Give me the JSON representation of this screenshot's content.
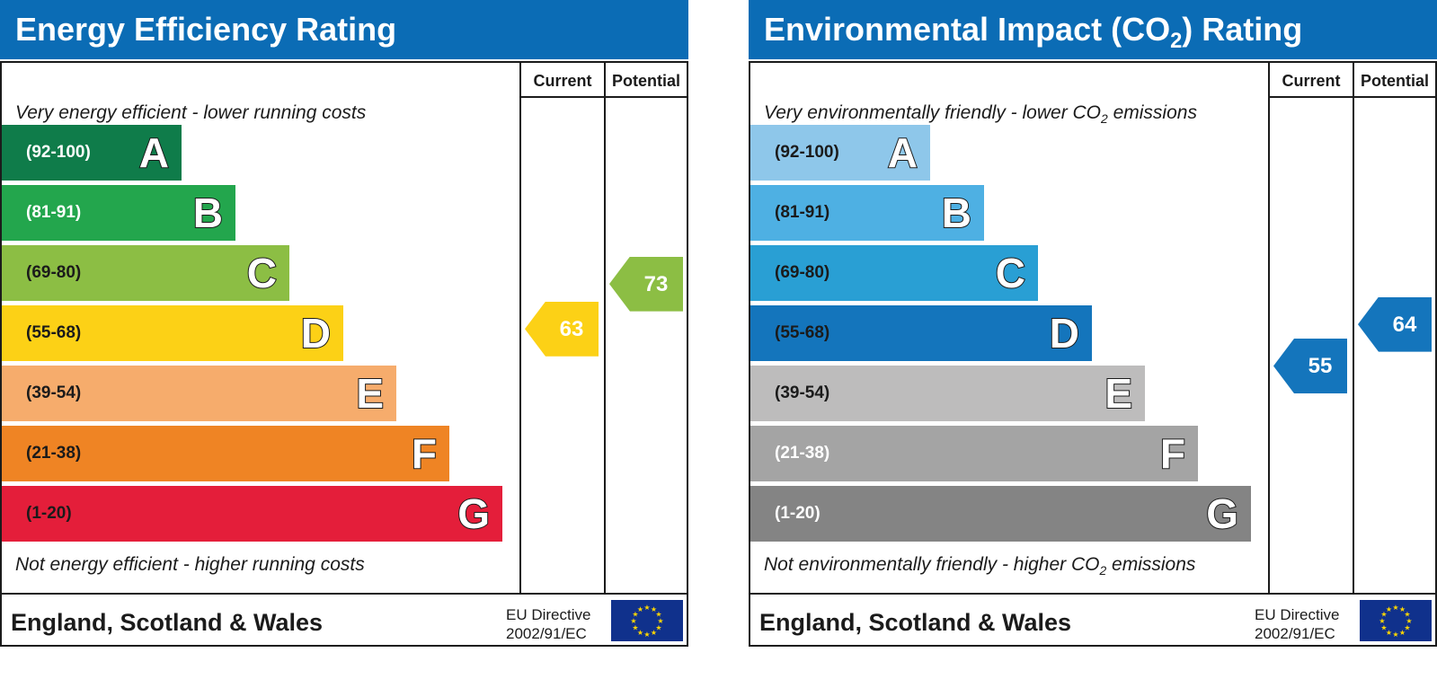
{
  "colors": {
    "header_blue": "#0b6cb5",
    "border": "#1b1b1b",
    "eu_flag": "#10318c",
    "eu_star": "#ffd700"
  },
  "chart_data": [
    {
      "type": "bar",
      "title": "Energy Efficiency Rating",
      "columns": [
        "Current",
        "Potential"
      ],
      "top_note": "Very energy efficient - lower running costs",
      "bottom_note": "Not energy efficient - higher running costs",
      "bands": [
        {
          "range": "(92-100)",
          "letter": "A",
          "color": "#0f7c4a",
          "text_color": "#ffffff"
        },
        {
          "range": "(81-91)",
          "letter": "B",
          "color": "#23a64d",
          "text_color": "#ffffff"
        },
        {
          "range": "(69-80)",
          "letter": "C",
          "color": "#8cbe44",
          "text_color": "#1b1b1b"
        },
        {
          "range": "(55-68)",
          "letter": "D",
          "color": "#fcd116",
          "text_color": "#1b1b1b"
        },
        {
          "range": "(39-54)",
          "letter": "E",
          "color": "#f6ac6c",
          "text_color": "#1b1b1b"
        },
        {
          "range": "(21-38)",
          "letter": "F",
          "color": "#ef8424",
          "text_color": "#1b1b1b"
        },
        {
          "range": "(1-20)",
          "letter": "G",
          "color": "#e41e3a",
          "text_color": "#1b1b1b"
        }
      ],
      "current": {
        "value": 63,
        "band": "D",
        "color": "#fcd116"
      },
      "potential": {
        "value": 73,
        "band": "C",
        "color": "#8cbe44"
      },
      "footer": {
        "region": "England, Scotland & Wales",
        "directive_line1": "EU Directive",
        "directive_line2": "2002/91/EC"
      }
    },
    {
      "type": "bar",
      "title": "Environmental Impact (CO2) Rating",
      "title_parts": {
        "before": "Environmental Impact (CO",
        "sub": "2",
        "after": ") Rating"
      },
      "columns": [
        "Current",
        "Potential"
      ],
      "top_note": "Very environmentally friendly - lower CO2 emissions",
      "top_note_parts": {
        "before": "Very environmentally friendly - lower CO",
        "sub": "2",
        "after": " emissions"
      },
      "bottom_note": "Not environmentally friendly - higher CO2 emissions",
      "bottom_note_parts": {
        "before": "Not environmentally friendly - higher CO",
        "sub": "2",
        "after": " emissions"
      },
      "bands": [
        {
          "range": "(92-100)",
          "letter": "A",
          "color": "#8ec7ea",
          "text_color": "#1b1b1b"
        },
        {
          "range": "(81-91)",
          "letter": "B",
          "color": "#4eb0e3",
          "text_color": "#1b1b1b"
        },
        {
          "range": "(69-80)",
          "letter": "C",
          "color": "#299fd4",
          "text_color": "#1b1b1b"
        },
        {
          "range": "(55-68)",
          "letter": "D",
          "color": "#1475bc",
          "text_color": "#1b1b1b"
        },
        {
          "range": "(39-54)",
          "letter": "E",
          "color": "#bdbcbc",
          "text_color": "#1b1b1b"
        },
        {
          "range": "(21-38)",
          "letter": "F",
          "color": "#a4a4a4",
          "text_color": "#ffffff"
        },
        {
          "range": "(1-20)",
          "letter": "G",
          "color": "#848484",
          "text_color": "#ffffff"
        }
      ],
      "current": {
        "value": 55,
        "band": "D",
        "color": "#1475bc"
      },
      "potential": {
        "value": 64,
        "band": "D",
        "color": "#1475bc"
      },
      "footer": {
        "region": "England, Scotland & Wales",
        "directive_line1": "EU Directive",
        "directive_line2": "2002/91/EC"
      }
    }
  ]
}
